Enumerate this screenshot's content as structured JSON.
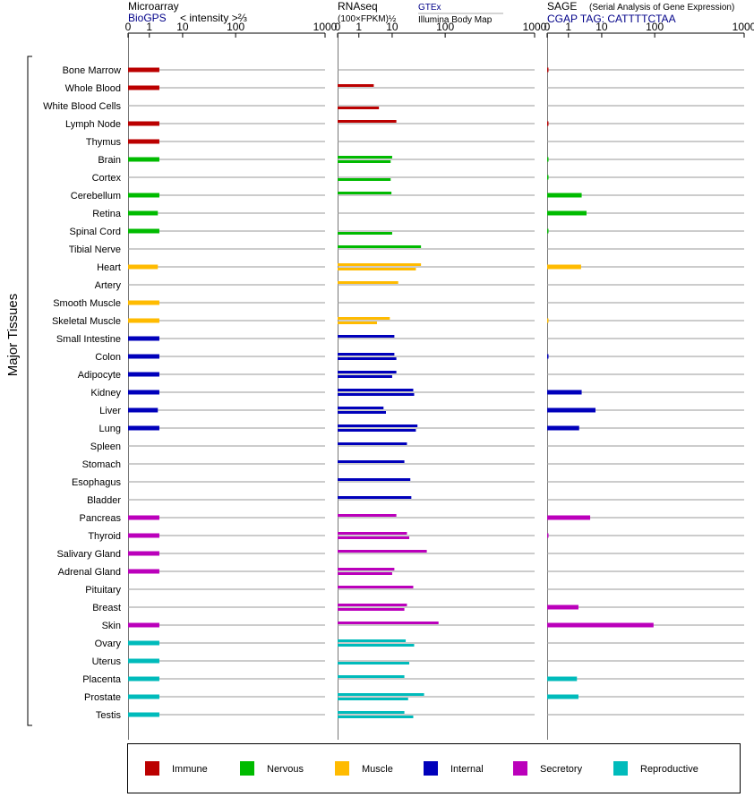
{
  "chart_data": {
    "type": "bar",
    "y_axis_label": "Major Tissues",
    "tissues": [
      {
        "name": "Bone Marrow",
        "group": "immune"
      },
      {
        "name": "Whole Blood",
        "group": "immune"
      },
      {
        "name": "White Blood Cells",
        "group": "immune"
      },
      {
        "name": "Lymph Node",
        "group": "immune"
      },
      {
        "name": "Thymus",
        "group": "immune"
      },
      {
        "name": "Brain",
        "group": "nervous"
      },
      {
        "name": "Cortex",
        "group": "nervous"
      },
      {
        "name": "Cerebellum",
        "group": "nervous"
      },
      {
        "name": "Retina",
        "group": "nervous"
      },
      {
        "name": "Spinal Cord",
        "group": "nervous"
      },
      {
        "name": "Tibial Nerve",
        "group": "nervous"
      },
      {
        "name": "Heart",
        "group": "muscle"
      },
      {
        "name": "Artery",
        "group": "muscle"
      },
      {
        "name": "Smooth Muscle",
        "group": "muscle"
      },
      {
        "name": "Skeletal Muscle",
        "group": "muscle"
      },
      {
        "name": "Small Intestine",
        "group": "internal"
      },
      {
        "name": "Colon",
        "group": "internal"
      },
      {
        "name": "Adipocyte",
        "group": "internal"
      },
      {
        "name": "Kidney",
        "group": "internal"
      },
      {
        "name": "Liver",
        "group": "internal"
      },
      {
        "name": "Lung",
        "group": "internal"
      },
      {
        "name": "Spleen",
        "group": "internal"
      },
      {
        "name": "Stomach",
        "group": "internal"
      },
      {
        "name": "Esophagus",
        "group": "internal"
      },
      {
        "name": "Bladder",
        "group": "internal"
      },
      {
        "name": "Pancreas",
        "group": "secretory"
      },
      {
        "name": "Thyroid",
        "group": "secretory"
      },
      {
        "name": "Salivary Gland",
        "group": "secretory"
      },
      {
        "name": "Adrenal Gland",
        "group": "secretory"
      },
      {
        "name": "Pituitary",
        "group": "secretory"
      },
      {
        "name": "Breast",
        "group": "secretory"
      },
      {
        "name": "Skin",
        "group": "secretory"
      },
      {
        "name": "Ovary",
        "group": "reproductive"
      },
      {
        "name": "Uterus",
        "group": "reproductive"
      },
      {
        "name": "Placenta",
        "group": "reproductive"
      },
      {
        "name": "Prostate",
        "group": "reproductive"
      },
      {
        "name": "Testis",
        "group": "reproductive"
      }
    ],
    "groups": [
      {
        "key": "immune",
        "label": "Immune",
        "color": "#bb0000"
      },
      {
        "key": "nervous",
        "label": "Nervous",
        "color": "#00bb00"
      },
      {
        "key": "muscle",
        "label": "Muscle",
        "color": "#ffbb00"
      },
      {
        "key": "internal",
        "label": "Internal",
        "color": "#0000bb"
      },
      {
        "key": "secretory",
        "label": "Secretory",
        "color": "#bb00bb"
      },
      {
        "key": "reproductive",
        "label": "Reproductive",
        "color": "#00bbbb"
      }
    ],
    "axis_ticks": [
      "0",
      "1",
      "10",
      "100",
      "1000"
    ],
    "panels": [
      {
        "key": "microarray",
        "title": "Microarray",
        "subtitle": "BioGPS",
        "unit": "< intensity >⅔",
        "bar_style": "thick",
        "values": [
          2,
          2,
          null,
          2,
          2,
          2,
          null,
          2,
          1.8,
          2,
          null,
          1.8,
          null,
          2,
          2,
          2,
          2,
          2,
          2,
          1.8,
          2,
          null,
          null,
          null,
          null,
          2,
          2,
          2,
          2,
          null,
          null,
          2,
          2,
          2,
          2,
          2,
          2
        ]
      },
      {
        "key": "rnaseq",
        "title": "RNAseq",
        "unit": "(100×FPKM)½",
        "source_a": "GTEx",
        "source_b": "Illumina Body Map",
        "bar_style": "pair",
        "values_gtex": [
          null,
          2.8,
          null,
          12,
          null,
          10,
          null,
          9.5,
          null,
          null,
          35,
          35,
          13,
          null,
          8.5,
          11,
          11,
          12,
          25,
          5.5,
          30,
          19,
          17,
          22,
          23,
          12,
          19,
          45,
          11,
          25,
          19,
          75,
          18,
          null,
          17,
          40,
          17
        ],
        "values_bodymap": [
          null,
          null,
          4,
          null,
          null,
          9,
          9,
          null,
          null,
          10,
          null,
          28,
          null,
          null,
          3.5,
          null,
          12,
          10,
          26,
          6.5,
          28,
          null,
          null,
          null,
          null,
          null,
          21,
          null,
          10,
          null,
          17,
          null,
          26,
          21,
          null,
          20,
          25
        ]
      },
      {
        "key": "sage",
        "title": "SAGE",
        "subtitle_note": "(Serial Analysis of Gene Expression)",
        "subtitle": "CGAP TAG: CATTTTCTAA",
        "bar_style": "thick",
        "values": [
          0.05,
          null,
          null,
          0.05,
          null,
          0.05,
          0.03,
          2.5,
          3.5,
          0.03,
          null,
          2.4,
          null,
          null,
          0.02,
          null,
          0.05,
          null,
          2.5,
          6.5,
          2.1,
          null,
          null,
          null,
          null,
          4.5,
          0.05,
          null,
          null,
          null,
          2,
          95,
          null,
          null,
          1.8,
          2,
          null
        ]
      }
    ]
  }
}
